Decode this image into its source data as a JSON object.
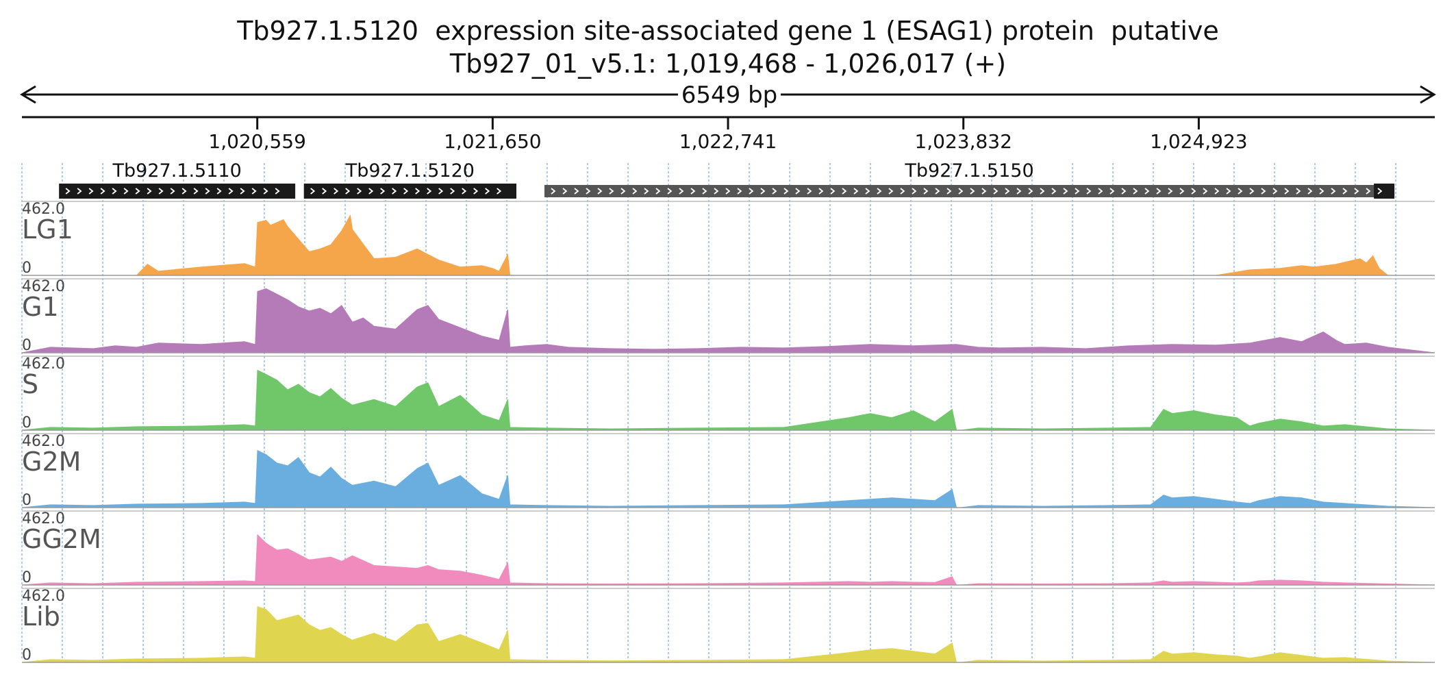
{
  "title": {
    "line1": "Tb927.1.5120  expression site-associated gene 1 (ESAG1) protein  putative",
    "line2": "Tb927_01_v5.1: 1,019,468 - 1,026,017 (+)"
  },
  "span_label": "6549 bp",
  "colors": {
    "LG1": "#f5a54a",
    "G1": "#b57ab8",
    "S": "#6fc76a",
    "G2M": "#6aaee0",
    "GG2M": "#f28bbd",
    "Lib": "#e0d54f",
    "gene_fill": "#1a1a1a",
    "grid": "#8fb8e0"
  },
  "chart_data": {
    "type": "area",
    "region": {
      "chrom": "Tb927_01_v5.1",
      "start": 1019468,
      "end": 1026017,
      "strand": "+"
    },
    "ruler_ticks": [
      {
        "pos": 1020559,
        "label": "1,020,559"
      },
      {
        "pos": 1021650,
        "label": "1,021,650"
      },
      {
        "pos": 1022741,
        "label": "1,022,741"
      },
      {
        "pos": 1023832,
        "label": "1,023,832"
      },
      {
        "pos": 1024923,
        "label": "1,024,923"
      }
    ],
    "genes": [
      {
        "name": "Tb927.1.5110",
        "start": 1019640,
        "end": 1020735,
        "strand": "+",
        "style": "solid"
      },
      {
        "name": "Tb927.1.5120",
        "start": 1020775,
        "end": 1021760,
        "strand": "+",
        "style": "solid"
      },
      {
        "name": "Tb927.1.5150",
        "start": 1021890,
        "end": 1025830,
        "strand": "+",
        "style": "partial"
      }
    ],
    "ylim": [
      0,
      462.0
    ],
    "tracks": [
      {
        "name": "LG1",
        "ymax_label": "462.0",
        "ymin_label": "0",
        "x": [
          1019468,
          1020000,
          1020050,
          1020100,
          1020300,
          1020500,
          1020550,
          1020560,
          1020600,
          1020620,
          1020680,
          1020700,
          1020750,
          1020800,
          1020850,
          1020900,
          1020950,
          1020990,
          1021000,
          1021100,
          1021200,
          1021300,
          1021400,
          1021500,
          1021600,
          1021650,
          1021680,
          1021720,
          1021730,
          1025000,
          1025160,
          1025300,
          1025400,
          1025460,
          1025560,
          1025670,
          1025700,
          1025730,
          1025760,
          1025800,
          1026017
        ],
        "y": [
          0,
          0,
          80,
          30,
          60,
          85,
          60,
          380,
          395,
          360,
          400,
          350,
          260,
          170,
          190,
          220,
          320,
          430,
          330,
          120,
          130,
          190,
          110,
          60,
          70,
          50,
          30,
          150,
          0,
          0,
          40,
          50,
          70,
          60,
          80,
          120,
          90,
          140,
          50,
          0,
          0
        ]
      },
      {
        "name": "G1",
        "ymax_label": "462.0",
        "ymin_label": "0",
        "x": [
          1019468,
          1019600,
          1019800,
          1019900,
          1020000,
          1020100,
          1020300,
          1020500,
          1020550,
          1020560,
          1020600,
          1020650,
          1020700,
          1020750,
          1020800,
          1020850,
          1020900,
          1020950,
          1021000,
          1021050,
          1021100,
          1021200,
          1021300,
          1021350,
          1021400,
          1021500,
          1021600,
          1021680,
          1021720,
          1021730,
          1021800,
          1021900,
          1022000,
          1022200,
          1022400,
          1022600,
          1022800,
          1023000,
          1023200,
          1023400,
          1023600,
          1023800,
          1023900,
          1024000,
          1024200,
          1024400,
          1024600,
          1024800,
          1025000,
          1025160,
          1025300,
          1025400,
          1025500,
          1025560,
          1025600,
          1025700,
          1025800,
          1026017
        ],
        "y": [
          0,
          40,
          30,
          50,
          40,
          70,
          60,
          80,
          60,
          440,
          460,
          420,
          380,
          330,
          300,
          320,
          280,
          340,
          220,
          250,
          190,
          170,
          310,
          340,
          240,
          180,
          120,
          90,
          310,
          40,
          50,
          60,
          40,
          30,
          25,
          30,
          40,
          35,
          45,
          60,
          50,
          60,
          40,
          35,
          40,
          30,
          50,
          60,
          55,
          70,
          110,
          80,
          150,
          90,
          60,
          70,
          40,
          0
        ]
      },
      {
        "name": "S",
        "ymax_label": "462.0",
        "ymin_label": "0",
        "x": [
          1019468,
          1019600,
          1019800,
          1020000,
          1020300,
          1020500,
          1020550,
          1020560,
          1020600,
          1020650,
          1020700,
          1020750,
          1020800,
          1020850,
          1020900,
          1020950,
          1021000,
          1021100,
          1021200,
          1021300,
          1021350,
          1021400,
          1021500,
          1021600,
          1021680,
          1021720,
          1021730,
          1021900,
          1022200,
          1022600,
          1023000,
          1023300,
          1023400,
          1023500,
          1023600,
          1023700,
          1023780,
          1023800,
          1023820,
          1023900,
          1024200,
          1024500,
          1024700,
          1024760,
          1024800,
          1024900,
          1025000,
          1025100,
          1025160,
          1025200,
          1025300,
          1025400,
          1025500,
          1025600,
          1025800,
          1026017
        ],
        "y": [
          0,
          20,
          15,
          25,
          30,
          40,
          30,
          430,
          400,
          360,
          290,
          330,
          270,
          240,
          300,
          230,
          180,
          220,
          170,
          310,
          340,
          170,
          250,
          110,
          70,
          220,
          20,
          15,
          10,
          15,
          20,
          90,
          120,
          90,
          140,
          60,
          150,
          0,
          0,
          15,
          10,
          15,
          20,
          150,
          120,
          140,
          110,
          90,
          30,
          50,
          80,
          60,
          30,
          40,
          10,
          0
        ]
      },
      {
        "name": "G2M",
        "ymax_label": "462.0",
        "ymin_label": "0",
        "x": [
          1019468,
          1019600,
          1019800,
          1020000,
          1020300,
          1020500,
          1020550,
          1020560,
          1020600,
          1020650,
          1020700,
          1020750,
          1020800,
          1020850,
          1020900,
          1020950,
          1021000,
          1021100,
          1021200,
          1021300,
          1021350,
          1021400,
          1021500,
          1021600,
          1021680,
          1021720,
          1021730,
          1021900,
          1022200,
          1022600,
          1023000,
          1023300,
          1023400,
          1023500,
          1023600,
          1023700,
          1023780,
          1023800,
          1023820,
          1023900,
          1024200,
          1024500,
          1024700,
          1024760,
          1024800,
          1024900,
          1025000,
          1025100,
          1025160,
          1025200,
          1025300,
          1025400,
          1025500,
          1025600,
          1025800,
          1026017
        ],
        "y": [
          0,
          20,
          15,
          25,
          30,
          40,
          30,
          410,
          380,
          320,
          300,
          360,
          250,
          220,
          290,
          210,
          160,
          190,
          150,
          280,
          320,
          160,
          230,
          100,
          60,
          230,
          20,
          15,
          10,
          15,
          20,
          50,
          60,
          70,
          60,
          50,
          130,
          0,
          0,
          15,
          10,
          15,
          20,
          90,
          70,
          80,
          60,
          40,
          30,
          50,
          80,
          70,
          40,
          30,
          10,
          0
        ]
      },
      {
        "name": "GG2M",
        "ymax_label": "462.0",
        "ymin_label": "0",
        "x": [
          1019468,
          1019600,
          1019800,
          1020000,
          1020300,
          1020500,
          1020550,
          1020560,
          1020600,
          1020650,
          1020700,
          1020750,
          1020800,
          1020850,
          1020900,
          1020950,
          1021000,
          1021100,
          1021200,
          1021300,
          1021350,
          1021400,
          1021500,
          1021600,
          1021680,
          1021720,
          1021730,
          1021900,
          1022200,
          1022600,
          1023000,
          1023300,
          1023400,
          1023500,
          1023600,
          1023700,
          1023780,
          1023800,
          1023820,
          1023900,
          1024200,
          1024500,
          1024700,
          1024760,
          1024800,
          1024900,
          1025000,
          1025100,
          1025160,
          1025200,
          1025300,
          1025400,
          1025500,
          1025600,
          1025800,
          1026017
        ],
        "y": [
          0,
          15,
          10,
          20,
          25,
          30,
          25,
          360,
          300,
          250,
          260,
          220,
          180,
          190,
          200,
          170,
          210,
          140,
          130,
          120,
          140,
          110,
          100,
          70,
          40,
          160,
          15,
          10,
          8,
          10,
          15,
          25,
          20,
          25,
          20,
          18,
          60,
          0,
          0,
          10,
          8,
          10,
          15,
          30,
          20,
          25,
          20,
          15,
          20,
          30,
          35,
          30,
          20,
          15,
          8,
          0
        ]
      },
      {
        "name": "Lib",
        "ymax_label": "462.0",
        "ymin_label": "0",
        "x": [
          1019468,
          1019600,
          1019800,
          1020000,
          1020300,
          1020500,
          1020550,
          1020560,
          1020600,
          1020650,
          1020700,
          1020750,
          1020800,
          1020850,
          1020900,
          1020950,
          1021000,
          1021100,
          1021200,
          1021300,
          1021350,
          1021400,
          1021500,
          1021600,
          1021680,
          1021720,
          1021730,
          1021900,
          1022200,
          1022600,
          1023000,
          1023300,
          1023400,
          1023500,
          1023600,
          1023700,
          1023780,
          1023800,
          1023820,
          1023900,
          1024200,
          1024500,
          1024700,
          1024760,
          1024800,
          1024900,
          1025000,
          1025100,
          1025160,
          1025200,
          1025300,
          1025400,
          1025500,
          1025600,
          1025800,
          1026017
        ],
        "y": [
          0,
          20,
          15,
          25,
          30,
          40,
          30,
          400,
          380,
          300,
          320,
          340,
          270,
          230,
          250,
          200,
          160,
          210,
          150,
          270,
          280,
          150,
          200,
          140,
          90,
          230,
          20,
          15,
          12,
          15,
          20,
          70,
          90,
          100,
          80,
          60,
          140,
          0,
          0,
          15,
          10,
          15,
          20,
          80,
          60,
          70,
          55,
          45,
          30,
          40,
          70,
          50,
          30,
          35,
          10,
          0
        ]
      }
    ]
  }
}
